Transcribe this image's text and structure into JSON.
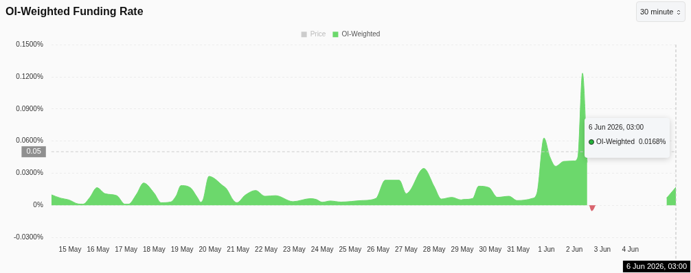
{
  "chart_data": {
    "type": "area",
    "title": "OI-Weighted Funding Rate",
    "x": [
      "2026-05-14T20:00",
      "2026-05-15T04:00",
      "2026-05-15T11:00",
      "2026-05-15T19:00",
      "2026-05-15T23:00",
      "2026-05-16T05:00",
      "2026-05-16T11:00",
      "2026-05-16T18:00",
      "2026-05-17T04:00",
      "2026-05-17T11:00",
      "2026-05-17T14:00",
      "2026-05-17T21:00",
      "2026-05-18T03:00",
      "2026-05-18T12:00",
      "2026-05-18T18:00",
      "2026-05-19T02:00",
      "2026-05-19T07:00",
      "2026-05-19T11:00",
      "2026-05-19T19:00",
      "2026-05-20T01:00",
      "2026-05-20T04:00",
      "2026-05-20T06:00",
      "2026-05-20T11:00",
      "2026-05-20T15:00",
      "2026-05-20T22:00",
      "2026-05-21T02:00",
      "2026-05-21T08:00",
      "2026-05-21T11:00",
      "2026-05-21T18:00",
      "2026-05-22T03:00",
      "2026-05-22T11:00",
      "2026-05-22T20:00",
      "2026-05-23T11:00",
      "2026-05-24T02:00",
      "2026-05-24T07:00",
      "2026-05-24T12:00",
      "2026-05-24T19:00",
      "2026-05-25T04:00",
      "2026-05-25T22:00",
      "2026-05-26T10:00",
      "2026-05-26T18:00",
      "2026-05-27T06:00",
      "2026-05-27T12:00",
      "2026-05-27T15:00",
      "2026-05-28T03:00",
      "2026-05-28T12:00",
      "2026-05-28T18:00",
      "2026-05-29T03:00",
      "2026-05-29T11:00",
      "2026-05-29T13:00",
      "2026-05-29T21:00",
      "2026-05-30T02:00",
      "2026-05-30T11:00",
      "2026-05-30T18:00",
      "2026-05-31T04:00",
      "2026-05-31T11:00",
      "2026-06-01T00:00",
      "2026-06-01T04:00",
      "2026-06-01T10:00",
      "2026-06-01T15:00",
      "2026-06-01T20:00",
      "2026-06-02T03:00",
      "2026-06-02T12:00",
      "2026-06-02T15:00",
      "2026-06-02T19:00",
      "2026-06-02T23:00",
      "2026-06-04T00:00",
      "2026-06-05T19:00",
      "2026-06-06T03:00"
    ],
    "series": [
      {
        "name": "Price",
        "color": "#cccccc",
        "values": [
          null,
          null,
          null,
          null,
          null,
          null,
          null,
          null,
          null,
          null,
          null,
          null,
          null,
          null,
          null,
          null,
          null,
          null,
          null,
          null,
          null,
          null,
          null,
          null,
          null,
          null,
          null,
          null,
          null,
          null,
          null,
          null,
          null,
          null,
          null,
          null,
          null,
          null,
          null,
          null,
          null,
          null,
          null,
          null,
          null,
          null,
          null,
          null,
          null,
          null,
          null,
          null,
          null,
          null,
          null,
          null,
          null,
          null,
          null,
          null,
          null,
          null,
          null,
          null,
          null,
          null,
          null,
          null,
          null
        ]
      },
      {
        "name": "OI-Weighted",
        "color": "#6cd86c",
        "values": [
          0.0098,
          0.0066,
          0.005,
          0.0012,
          0.001,
          0.0074,
          0.0164,
          0.0108,
          0.009,
          0.001,
          0.001,
          0.0104,
          0.0208,
          0.0114,
          0.0024,
          0.003,
          0.009,
          0.0184,
          0.0164,
          0.0074,
          0.0028,
          0.0054,
          0.027,
          0.0254,
          0.019,
          0.0154,
          0.0044,
          0.0024,
          0.0094,
          0.0138,
          0.0084,
          0.009,
          0.0034,
          0.0062,
          0.0054,
          0.0028,
          0.004,
          0.003,
          0.0044,
          0.0064,
          0.0234,
          0.0234,
          0.0108,
          0.0134,
          0.0344,
          0.0174,
          0.0058,
          0.0074,
          0.005,
          0.0054,
          0.0064,
          0.0178,
          0.0164,
          0.0074,
          0.0084,
          0.0044,
          0.0064,
          0.0114,
          0.0628,
          0.0454,
          0.0364,
          0.041,
          0.0414,
          0.045,
          0.1234,
          0.04,
          null,
          0.0066,
          0.0168
        ]
      },
      {
        "color": "#d9646e",
        "x": [
          "2026-06-03T01:00",
          "2026-06-03T03:00",
          "2026-06-03T06:00"
        ],
        "values": [
          0,
          -0.0052,
          0
        ]
      }
    ],
    "xlim": [
      "2026-05-14T20:00",
      "2026-06-06T03:00"
    ],
    "xticks": [
      {
        "value": "2026-05-15T12:00",
        "label": "15 May"
      },
      {
        "value": "2026-05-16T12:00",
        "label": "16 May"
      },
      {
        "value": "2026-05-17T12:00",
        "label": "17 May"
      },
      {
        "value": "2026-05-18T12:00",
        "label": "18 May"
      },
      {
        "value": "2026-05-19T12:00",
        "label": "19 May"
      },
      {
        "value": "2026-05-20T12:00",
        "label": "20 May"
      },
      {
        "value": "2026-05-21T12:00",
        "label": "21 May"
      },
      {
        "value": "2026-05-22T12:00",
        "label": "22 May"
      },
      {
        "value": "2026-05-23T12:00",
        "label": "23 May"
      },
      {
        "value": "2026-05-24T12:00",
        "label": "24 May"
      },
      {
        "value": "2026-05-25T12:00",
        "label": "25 May"
      },
      {
        "value": "2026-05-26T12:00",
        "label": "26 May"
      },
      {
        "value": "2026-05-27T12:00",
        "label": "27 May"
      },
      {
        "value": "2026-05-28T12:00",
        "label": "28 May"
      },
      {
        "value": "2026-05-29T12:00",
        "label": "29 May"
      },
      {
        "value": "2026-05-30T12:00",
        "label": "30 May"
      },
      {
        "value": "2026-05-31T12:00",
        "label": "31 May"
      },
      {
        "value": "2026-06-01T12:00",
        "label": "1 Jun"
      },
      {
        "value": "2026-06-02T12:00",
        "label": "2 Jun"
      },
      {
        "value": "2026-06-03T12:00",
        "label": "3 Jun"
      },
      {
        "value": "2026-06-04T12:00",
        "label": "4 Jun"
      }
    ],
    "ylim": [
      -0.03,
      0.15
    ],
    "yticks": [
      {
        "value": -0.03,
        "label": "-0.0300%"
      },
      {
        "value": 0,
        "label": "0%"
      },
      {
        "value": 0.03,
        "label": "0.0300%"
      },
      {
        "value": 0.06,
        "label": "0.0600%"
      },
      {
        "value": 0.09,
        "label": "0.0900%"
      },
      {
        "value": 0.12,
        "label": "0.1200%"
      },
      {
        "value": 0.15,
        "label": "0.1500%"
      }
    ],
    "ref_lines": [
      {
        "axis": "y",
        "value": 0.05,
        "label": "0.05",
        "color": "#cccccc",
        "line_style": "dashed"
      },
      {
        "axis": "x",
        "value": "2026-06-06T03:00",
        "label": "6 Jun 2026, 03:00",
        "color": "#bbbbbb",
        "line_style": "dashed"
      }
    ],
    "annotations": [
      "6 Jun 2026, 03:00",
      "OI-Weighted",
      "0.0168%",
      "30 minute"
    ],
    "grid": "y",
    "legend": "top",
    "marker": "none"
  }
}
